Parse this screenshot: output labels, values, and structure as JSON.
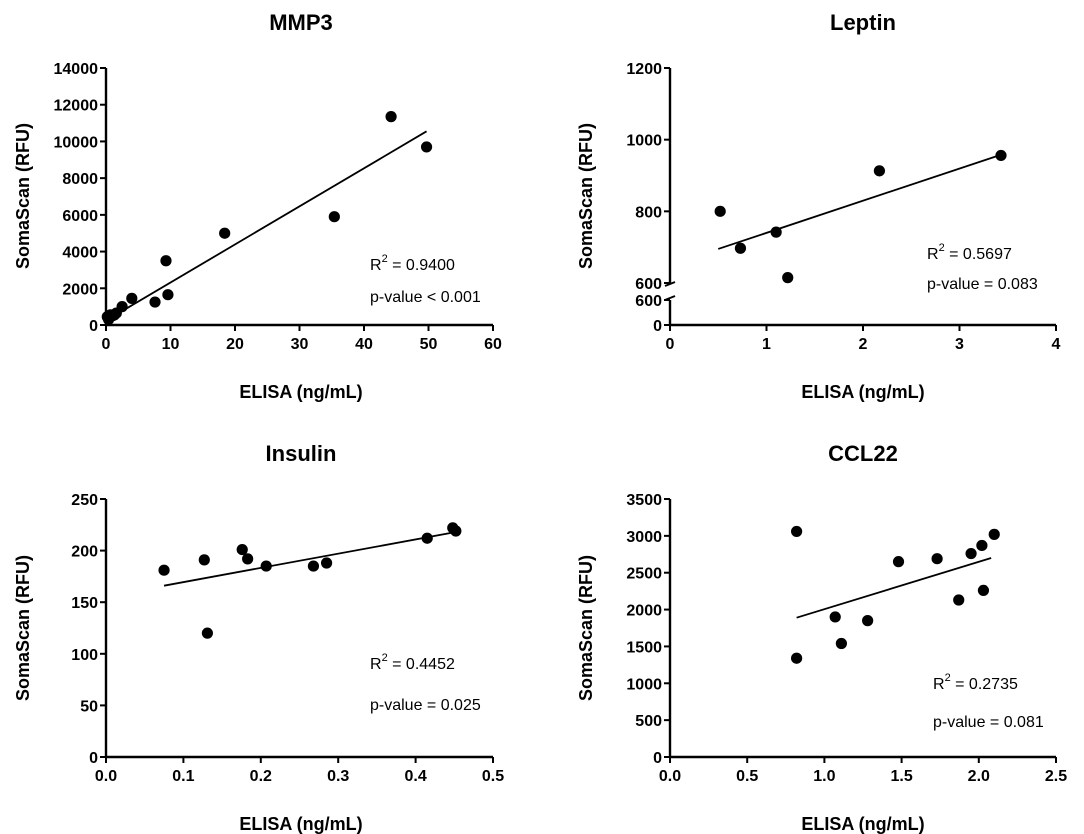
{
  "chart_data": [
    {
      "type": "scatter",
      "title": "MMP3",
      "xlabel": "ELISA (ng/mL)",
      "ylabel": "SomaScan (RFU)",
      "xlim": [
        0,
        60
      ],
      "ylim": [
        0,
        14000
      ],
      "xticks": [
        0,
        10,
        20,
        30,
        40,
        50,
        60
      ],
      "yticks": [
        0,
        2000,
        4000,
        6000,
        8000,
        10000,
        12000,
        14000
      ],
      "points": [
        {
          "x": 0.2,
          "y": 450
        },
        {
          "x": 0.4,
          "y": 300
        },
        {
          "x": 0.7,
          "y": 550
        },
        {
          "x": 1.0,
          "y": 500
        },
        {
          "x": 1.3,
          "y": 550
        },
        {
          "x": 1.6,
          "y": 650
        },
        {
          "x": 2.5,
          "y": 1000
        },
        {
          "x": 4.0,
          "y": 1450
        },
        {
          "x": 7.6,
          "y": 1250
        },
        {
          "x": 9.3,
          "y": 3500
        },
        {
          "x": 9.6,
          "y": 1650
        },
        {
          "x": 18.4,
          "y": 5000
        },
        {
          "x": 35.4,
          "y": 5900
        },
        {
          "x": 44.2,
          "y": 11350
        },
        {
          "x": 49.7,
          "y": 9700
        }
      ],
      "fit": {
        "x": [
          0.2,
          49.7
        ],
        "y": [
          280,
          10550
        ]
      },
      "annotations": {
        "r2_label": "R",
        "r2_sup": "2",
        "r2_value": " = 0.9400",
        "p_value": "p-value < 0.001"
      }
    },
    {
      "type": "scatter",
      "title": "Leptin",
      "xlabel": "ELISA (ng/mL)",
      "ylabel": "SomaScan (RFU)",
      "xlim": [
        0,
        4
      ],
      "ylim": [
        600,
        1200
      ],
      "xticks": [
        0,
        1,
        2,
        3,
        4
      ],
      "yticks": [
        600,
        800,
        1000,
        1200
      ],
      "broken_axis": {
        "lower_ticks": [
          "0",
          "600"
        ]
      },
      "points": [
        {
          "x": 0.52,
          "y": 800
        },
        {
          "x": 0.73,
          "y": 697
        },
        {
          "x": 1.1,
          "y": 742
        },
        {
          "x": 1.22,
          "y": 615
        },
        {
          "x": 2.17,
          "y": 913
        },
        {
          "x": 3.43,
          "y": 956
        }
      ],
      "fit": {
        "x": [
          0.5,
          3.43
        ],
        "y": [
          695,
          958
        ]
      },
      "annotations": {
        "r2_label": "R",
        "r2_sup": "2",
        "r2_value": " = 0.5697",
        "p_value": "p-value  = 0.083"
      }
    },
    {
      "type": "scatter",
      "title": "Insulin",
      "xlabel": "ELISA (ng/mL)",
      "ylabel": "SomaScan (RFU)",
      "xlim": [
        0,
        0.5
      ],
      "ylim": [
        0,
        250
      ],
      "xticks": [
        0,
        0.1,
        0.2,
        0.3,
        0.4,
        0.5
      ],
      "xtick_labels": [
        "0.0",
        "0.1",
        "0.2",
        "0.3",
        "0.4",
        "0.5"
      ],
      "yticks": [
        0,
        50,
        100,
        150,
        200,
        250
      ],
      "points": [
        {
          "x": 0.075,
          "y": 181
        },
        {
          "x": 0.127,
          "y": 191
        },
        {
          "x": 0.131,
          "y": 120
        },
        {
          "x": 0.176,
          "y": 201
        },
        {
          "x": 0.183,
          "y": 192
        },
        {
          "x": 0.207,
          "y": 185
        },
        {
          "x": 0.268,
          "y": 185
        },
        {
          "x": 0.285,
          "y": 188
        },
        {
          "x": 0.415,
          "y": 212
        },
        {
          "x": 0.448,
          "y": 222
        },
        {
          "x": 0.452,
          "y": 219
        }
      ],
      "fit": {
        "x": [
          0.075,
          0.452
        ],
        "y": [
          166,
          218
        ]
      },
      "annotations": {
        "r2_label": "R",
        "r2_sup": "2",
        "r2_value": " = 0.4452",
        "p_value": "p-value  = 0.025"
      }
    },
    {
      "type": "scatter",
      "title": "CCL22",
      "xlabel": "ELISA (ng/mL)",
      "ylabel": "SomaScan (RFU)",
      "xlim": [
        0,
        2.5
      ],
      "ylim": [
        0,
        3500
      ],
      "xticks": [
        0,
        0.5,
        1.0,
        1.5,
        2.0,
        2.5
      ],
      "xtick_labels": [
        "0.0",
        "0.5",
        "1.0",
        "1.5",
        "2.0",
        "2.5"
      ],
      "yticks": [
        0,
        500,
        1000,
        1500,
        2000,
        2500,
        3000,
        3500
      ],
      "points": [
        {
          "x": 0.82,
          "y": 3060
        },
        {
          "x": 0.82,
          "y": 1340
        },
        {
          "x": 1.07,
          "y": 1900
        },
        {
          "x": 1.11,
          "y": 1540
        },
        {
          "x": 1.28,
          "y": 1850
        },
        {
          "x": 1.48,
          "y": 2650
        },
        {
          "x": 1.73,
          "y": 2690
        },
        {
          "x": 1.87,
          "y": 2130
        },
        {
          "x": 1.95,
          "y": 2760
        },
        {
          "x": 2.02,
          "y": 2870
        },
        {
          "x": 2.03,
          "y": 2260
        },
        {
          "x": 2.1,
          "y": 3020
        }
      ],
      "fit": {
        "x": [
          0.82,
          2.08
        ],
        "y": [
          1890,
          2700
        ]
      },
      "annotations": {
        "r2_label": "R",
        "r2_sup": "2",
        "r2_value": " = 0.2735",
        "p_value": "p-value  = 0.081"
      }
    }
  ]
}
